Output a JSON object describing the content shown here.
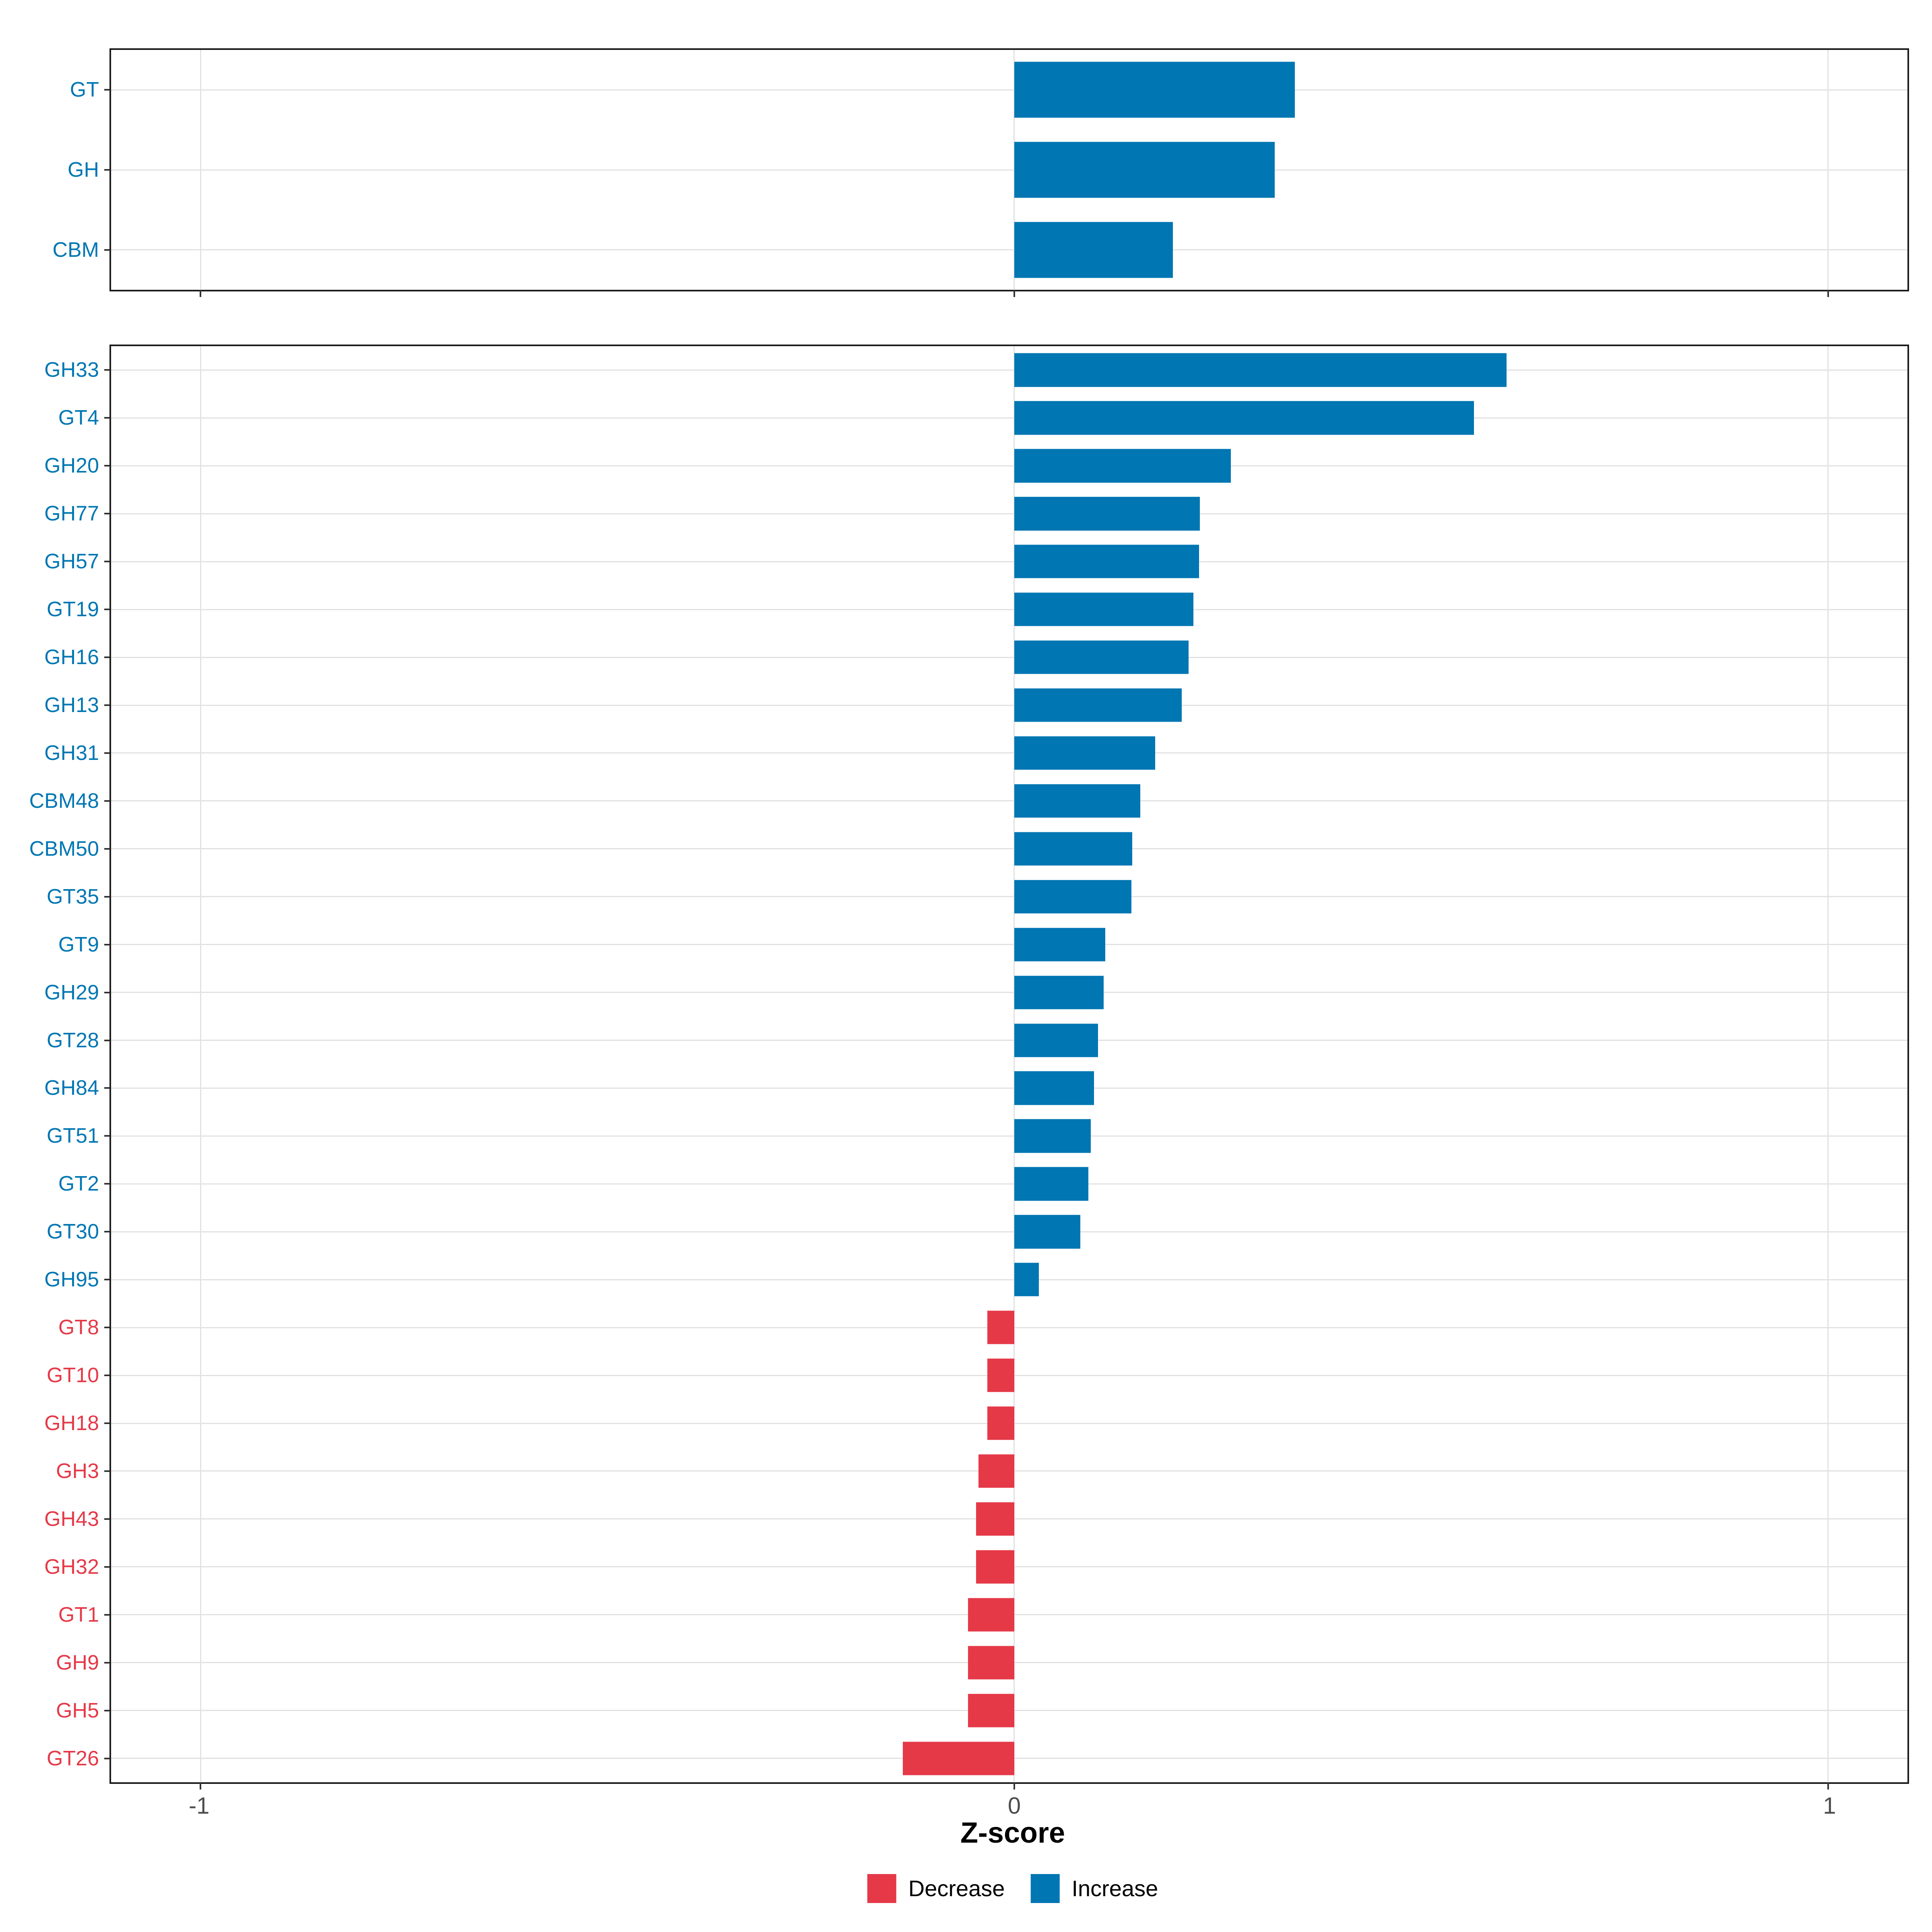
{
  "axis": {
    "xlabel": "Z-score",
    "tick_values": [
      -1,
      0,
      1
    ],
    "tick_labels": [
      "-1",
      "0",
      "1"
    ],
    "xlim": [
      -1.11,
      1.1
    ]
  },
  "legend": {
    "position": "bottom",
    "items": [
      {
        "label": "Decrease",
        "color": "#E53948"
      },
      {
        "label": "Increase",
        "color": "#0076B3"
      }
    ]
  },
  "colors": {
    "increase": "#0076B3",
    "decrease": "#E53948",
    "gridline": "#E2E2E2",
    "panel_border": "#1A1A1A",
    "tick_mark": "#333333",
    "axis_text": "#4D4D4D"
  },
  "chart_data": [
    {
      "type": "bar",
      "orientation": "horizontal",
      "panel": "cazyme-classes",
      "title": "",
      "xlabel": "Z-score",
      "grid": true,
      "xlim": [
        -1.11,
        1.1
      ],
      "categories": [
        "GT",
        "GH",
        "CBM"
      ],
      "values": [
        0.345,
        0.32,
        0.195
      ]
    },
    {
      "type": "bar",
      "orientation": "horizontal",
      "panel": "cazyme-families",
      "title": "",
      "xlabel": "Z-score",
      "grid": true,
      "xlim": [
        -1.11,
        1.1
      ],
      "categories": [
        "GH33",
        "GT4",
        "GH20",
        "GH77",
        "GH57",
        "GT19",
        "GH16",
        "GH13",
        "GH31",
        "CBM48",
        "CBM50",
        "GT35",
        "GT9",
        "GH29",
        "GT28",
        "GH84",
        "GT51",
        "GT2",
        "GT30",
        "GH95",
        "GT8",
        "GT10",
        "GH18",
        "GH3",
        "GH43",
        "GH32",
        "GT1",
        "GH9",
        "GH5",
        "GT26"
      ],
      "values": [
        0.605,
        0.565,
        0.266,
        0.228,
        0.227,
        0.22,
        0.214,
        0.206,
        0.173,
        0.155,
        0.145,
        0.144,
        0.112,
        0.11,
        0.103,
        0.098,
        0.094,
        0.091,
        0.081,
        0.03,
        -0.033,
        -0.033,
        -0.033,
        -0.044,
        -0.047,
        -0.047,
        -0.057,
        -0.057,
        -0.057,
        -0.137
      ]
    }
  ]
}
